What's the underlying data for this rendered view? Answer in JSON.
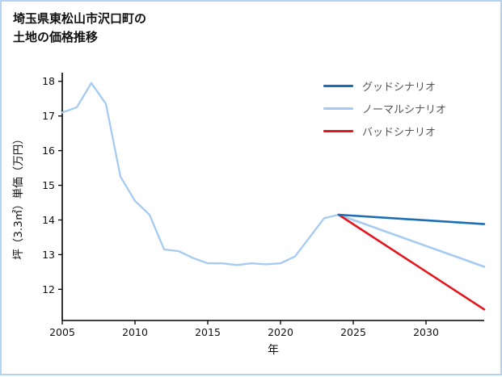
{
  "page": {
    "background": "#ffffff",
    "border_color": "#b5d3f0"
  },
  "chart_data": {
    "type": "line",
    "title": "埼玉県東松山市沢口町の\n土地の価格推移",
    "xlabel": "年",
    "ylabel": "坪（3.3㎡）単価（万円）",
    "xlim": [
      2005,
      2034
    ],
    "ylim": [
      11.1,
      18.25
    ],
    "xticks": [
      2005,
      2010,
      2015,
      2020,
      2025,
      2030
    ],
    "yticks": [
      12,
      13,
      14,
      15,
      16,
      17,
      18
    ],
    "grid": false,
    "legend_position": "upper right",
    "series": [
      {
        "key": "historical",
        "name": "historical",
        "color": "#a6cbf2",
        "width": 2.3,
        "x": [
          2005,
          2006,
          2007,
          2008,
          2009,
          2010,
          2011,
          2012,
          2013,
          2014,
          2015,
          2016,
          2017,
          2018,
          2019,
          2020,
          2021,
          2022,
          2023,
          2024
        ],
        "y": [
          17.1,
          17.25,
          17.95,
          17.35,
          15.25,
          14.55,
          14.15,
          13.15,
          13.1,
          12.9,
          12.75,
          12.75,
          12.7,
          12.75,
          12.72,
          12.75,
          12.95,
          13.5,
          14.05,
          14.15
        ]
      },
      {
        "key": "good",
        "name": "グッドシナリオ",
        "color": "#1b6db5",
        "width": 2.6,
        "x": [
          2024,
          2034
        ],
        "y": [
          14.15,
          13.88
        ]
      },
      {
        "key": "normal",
        "name": "ノーマルシナリオ",
        "color": "#a6cbf2",
        "width": 2.6,
        "x": [
          2024,
          2034
        ],
        "y": [
          14.15,
          12.65
        ]
      },
      {
        "key": "bad",
        "name": "バッドシナリオ",
        "color": "#e5171e",
        "width": 2.6,
        "x": [
          2024,
          2034
        ],
        "y": [
          14.15,
          11.42
        ]
      }
    ],
    "legend": [
      {
        "label": "グッドシナリオ",
        "color": "#1b6db5"
      },
      {
        "label": "ノーマルシナリオ",
        "color": "#a6cbf2"
      },
      {
        "label": "バッドシナリオ",
        "color": "#e5171e"
      }
    ]
  }
}
